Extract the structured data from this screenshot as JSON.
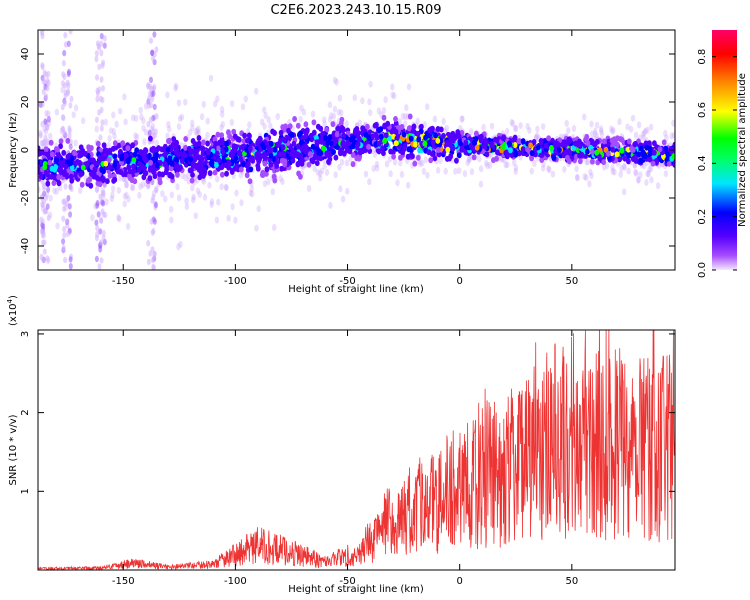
{
  "figure_title": "C2E6.2023.243.10.15.R09",
  "chart_data": [
    {
      "type": "heatmap",
      "xlabel": "Height of straight line (km)",
      "ylabel": "Frequency (Hz)",
      "xlim": [
        -188,
        96
      ],
      "ylim": [
        -50,
        50
      ],
      "x_ticks": [
        -150,
        -100,
        -50,
        0,
        50
      ],
      "y_ticks": [
        -40,
        -20,
        0,
        20,
        40
      ],
      "colorbar": {
        "label": "Normalized spectral amplitude",
        "range": [
          0,
          0.9
        ],
        "ticks": [
          0.0,
          0.2,
          0.4,
          0.6,
          0.8
        ],
        "colormap": [
          "#f5e6ff",
          "#a64dff",
          "#5500ff",
          "#0000ff",
          "#00e5ff",
          "#00ff00",
          "#ffff00",
          "#ff8800",
          "#ff0000",
          "#ff0066"
        ]
      },
      "ridge": [
        {
          "x": -188,
          "y": -7
        },
        {
          "x": -150,
          "y": -5
        },
        {
          "x": -100,
          "y": -2
        },
        {
          "x": -60,
          "y": 2
        },
        {
          "x": -35,
          "y": 5
        },
        {
          "x": 0,
          "y": 2
        },
        {
          "x": 50,
          "y": 0
        },
        {
          "x": 96,
          "y": -2
        }
      ],
      "vertical_streaks_x": [
        -185,
        -175,
        -160,
        -137
      ]
    },
    {
      "type": "line",
      "xlabel": "Height of straight line (km)",
      "ylabel": "SNR (10 * v/v)",
      "yscale_label": "(x10",
      "yscale_exp": "4",
      "yscale_close": ")",
      "xlim": [
        -188,
        96
      ],
      "ylim": [
        0,
        3.05
      ],
      "x_ticks": [
        -150,
        -100,
        -50,
        0,
        50
      ],
      "y_ticks": [
        1,
        2,
        3
      ],
      "color": "#ee3333",
      "envelope": [
        {
          "x": -188,
          "y": 0.02
        },
        {
          "x": -160,
          "y": 0.03
        },
        {
          "x": -145,
          "y": 0.1
        },
        {
          "x": -130,
          "y": 0.04
        },
        {
          "x": -110,
          "y": 0.08
        },
        {
          "x": -90,
          "y": 0.35
        },
        {
          "x": -75,
          "y": 0.25
        },
        {
          "x": -60,
          "y": 0.12
        },
        {
          "x": -45,
          "y": 0.25
        },
        {
          "x": -35,
          "y": 0.55
        },
        {
          "x": -20,
          "y": 0.8
        },
        {
          "x": 0,
          "y": 1.1
        },
        {
          "x": 10,
          "y": 1.3
        },
        {
          "x": 25,
          "y": 1.5
        },
        {
          "x": 50,
          "y": 1.7
        },
        {
          "x": 75,
          "y": 1.8
        },
        {
          "x": 96,
          "y": 1.7
        }
      ]
    }
  ]
}
